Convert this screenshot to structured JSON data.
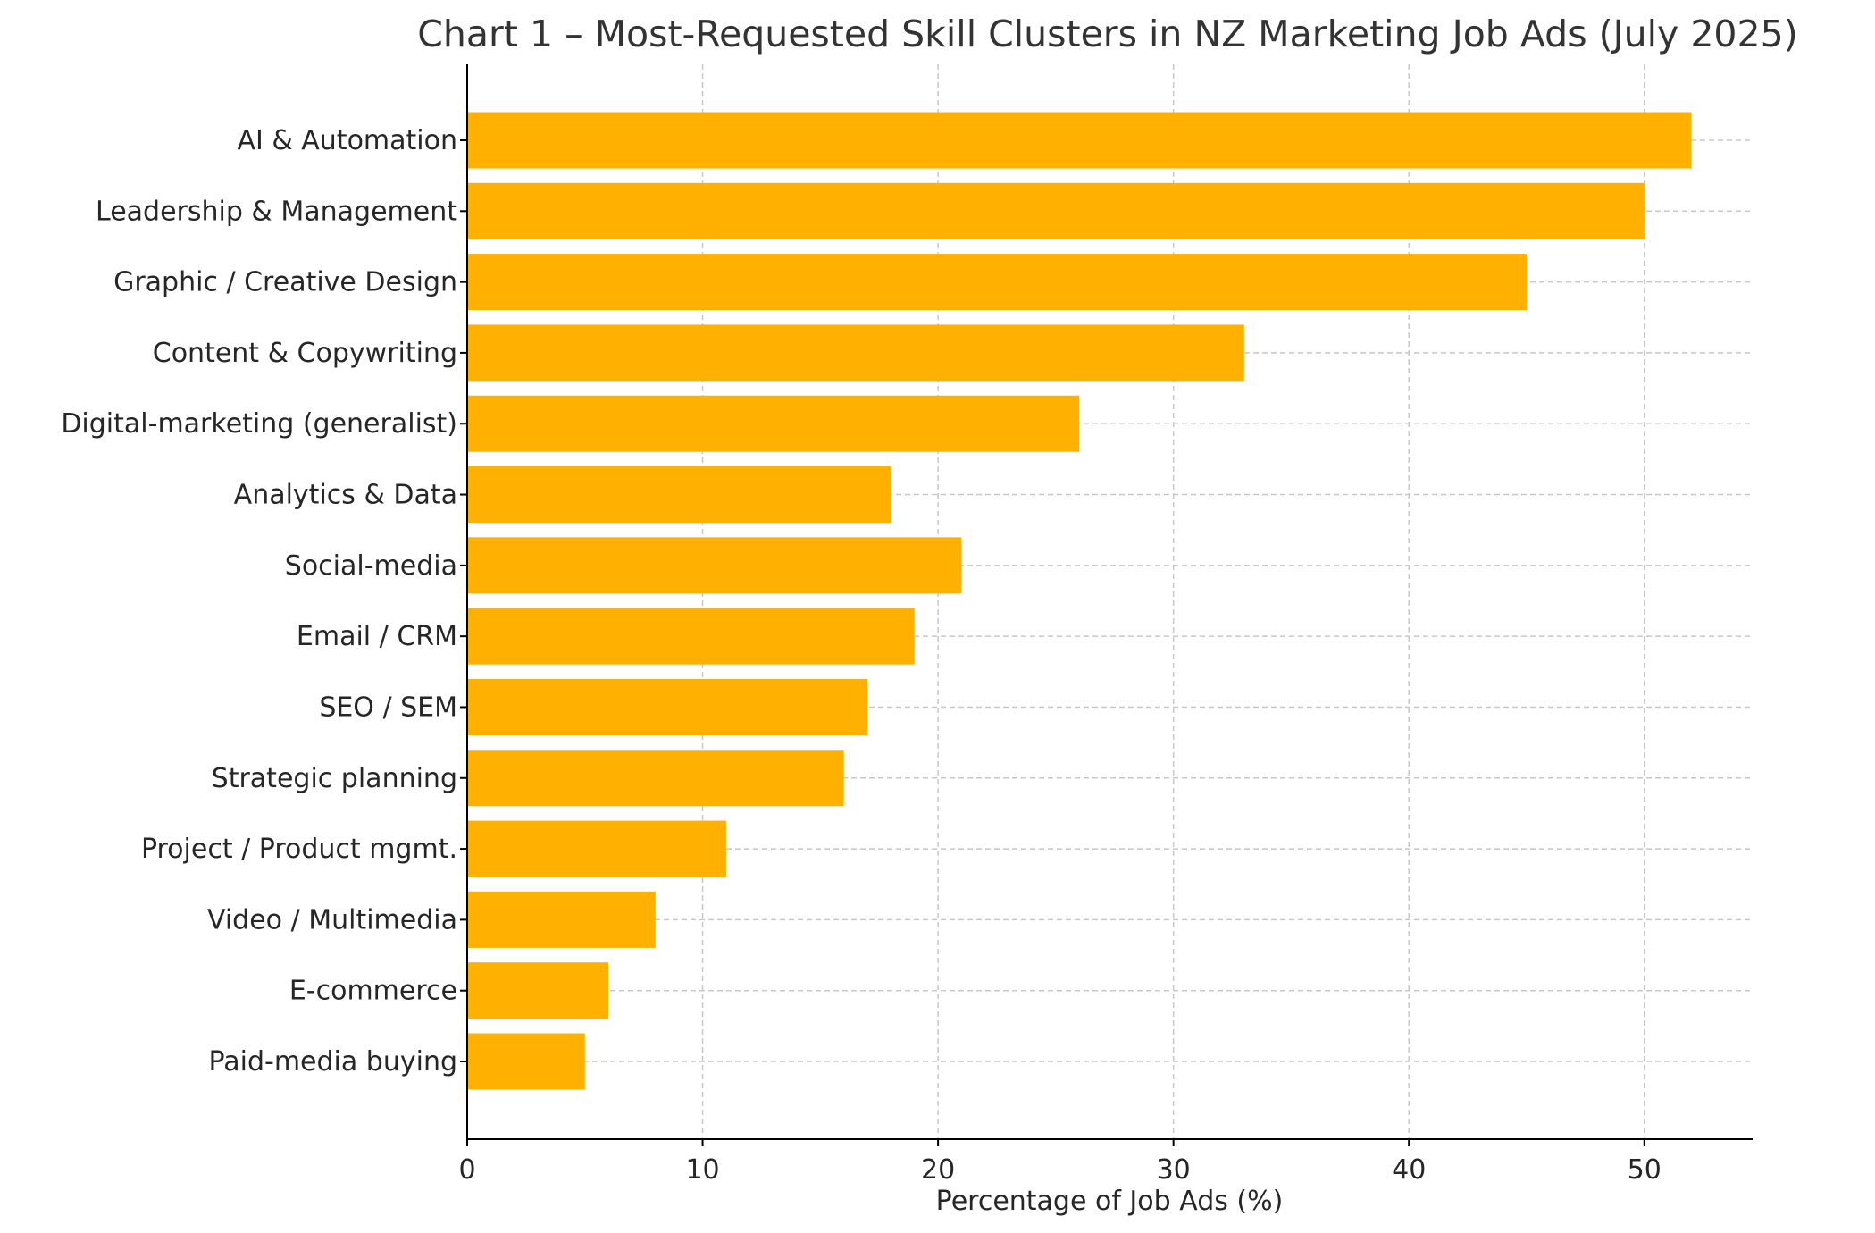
{
  "chart_data": {
    "type": "bar",
    "orientation": "horizontal",
    "title": "Chart 1 – Most-Requested Skill Clusters in NZ Marketing Job Ads (July 2025)",
    "xlabel": "Percentage of Job Ads (%)",
    "ylabel": "",
    "categories": [
      "AI & Automation",
      "Leadership & Management",
      "Graphic / Creative Design",
      "Content & Copywriting",
      "Digital-marketing (generalist)",
      "Analytics & Data",
      "Social-media",
      "Email / CRM",
      "SEO / SEM",
      "Strategic planning",
      "Project / Product mgmt.",
      "Video / Multimedia",
      "E-commerce",
      "Paid-media buying"
    ],
    "values": [
      52,
      50,
      45,
      33,
      26,
      18,
      21,
      19,
      17,
      16,
      11,
      8,
      6,
      5
    ],
    "xlim": [
      0,
      54.6
    ],
    "xticks": [
      0,
      10,
      20,
      30,
      40,
      50
    ],
    "grid": true,
    "bar_color": "#FFB000"
  }
}
